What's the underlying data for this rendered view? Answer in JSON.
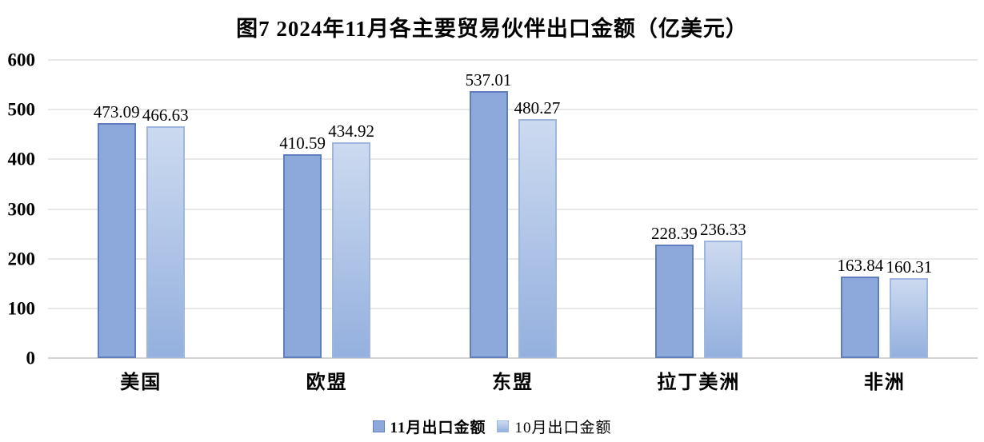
{
  "chart_data": {
    "type": "bar",
    "title": "图7 2024年11月各主要贸易伙伴出口金额（亿美元）",
    "categories": [
      "美国",
      "欧盟",
      "东盟",
      "拉丁美洲",
      "非洲"
    ],
    "series": [
      {
        "key": "nov",
        "name": "11月出口金额",
        "values": [
          473.09,
          410.59,
          537.01,
          228.39,
          163.84
        ]
      },
      {
        "key": "oct",
        "name": "10月出口金额",
        "values": [
          466.63,
          434.92,
          480.27,
          236.33,
          160.31
        ]
      }
    ],
    "xlabel": "",
    "ylabel": "",
    "ylim": [
      0,
      600
    ],
    "yticks": [
      0,
      100,
      200,
      300,
      400,
      500,
      600
    ],
    "grid": true,
    "legend_position": "bottom",
    "value_labels_shown": true,
    "colors": {
      "series1_fill": "#8DA8DB",
      "series1_border": "#5E7EBC",
      "series2_fill_top": "#CCDAF0",
      "series2_fill_bottom": "#94B0DE",
      "series2_border": "#9EB6E0",
      "gridline": "#E8E8E8",
      "axis_line": "#D4D4D4",
      "text": "#000000",
      "background": "#FFFFFF"
    }
  }
}
